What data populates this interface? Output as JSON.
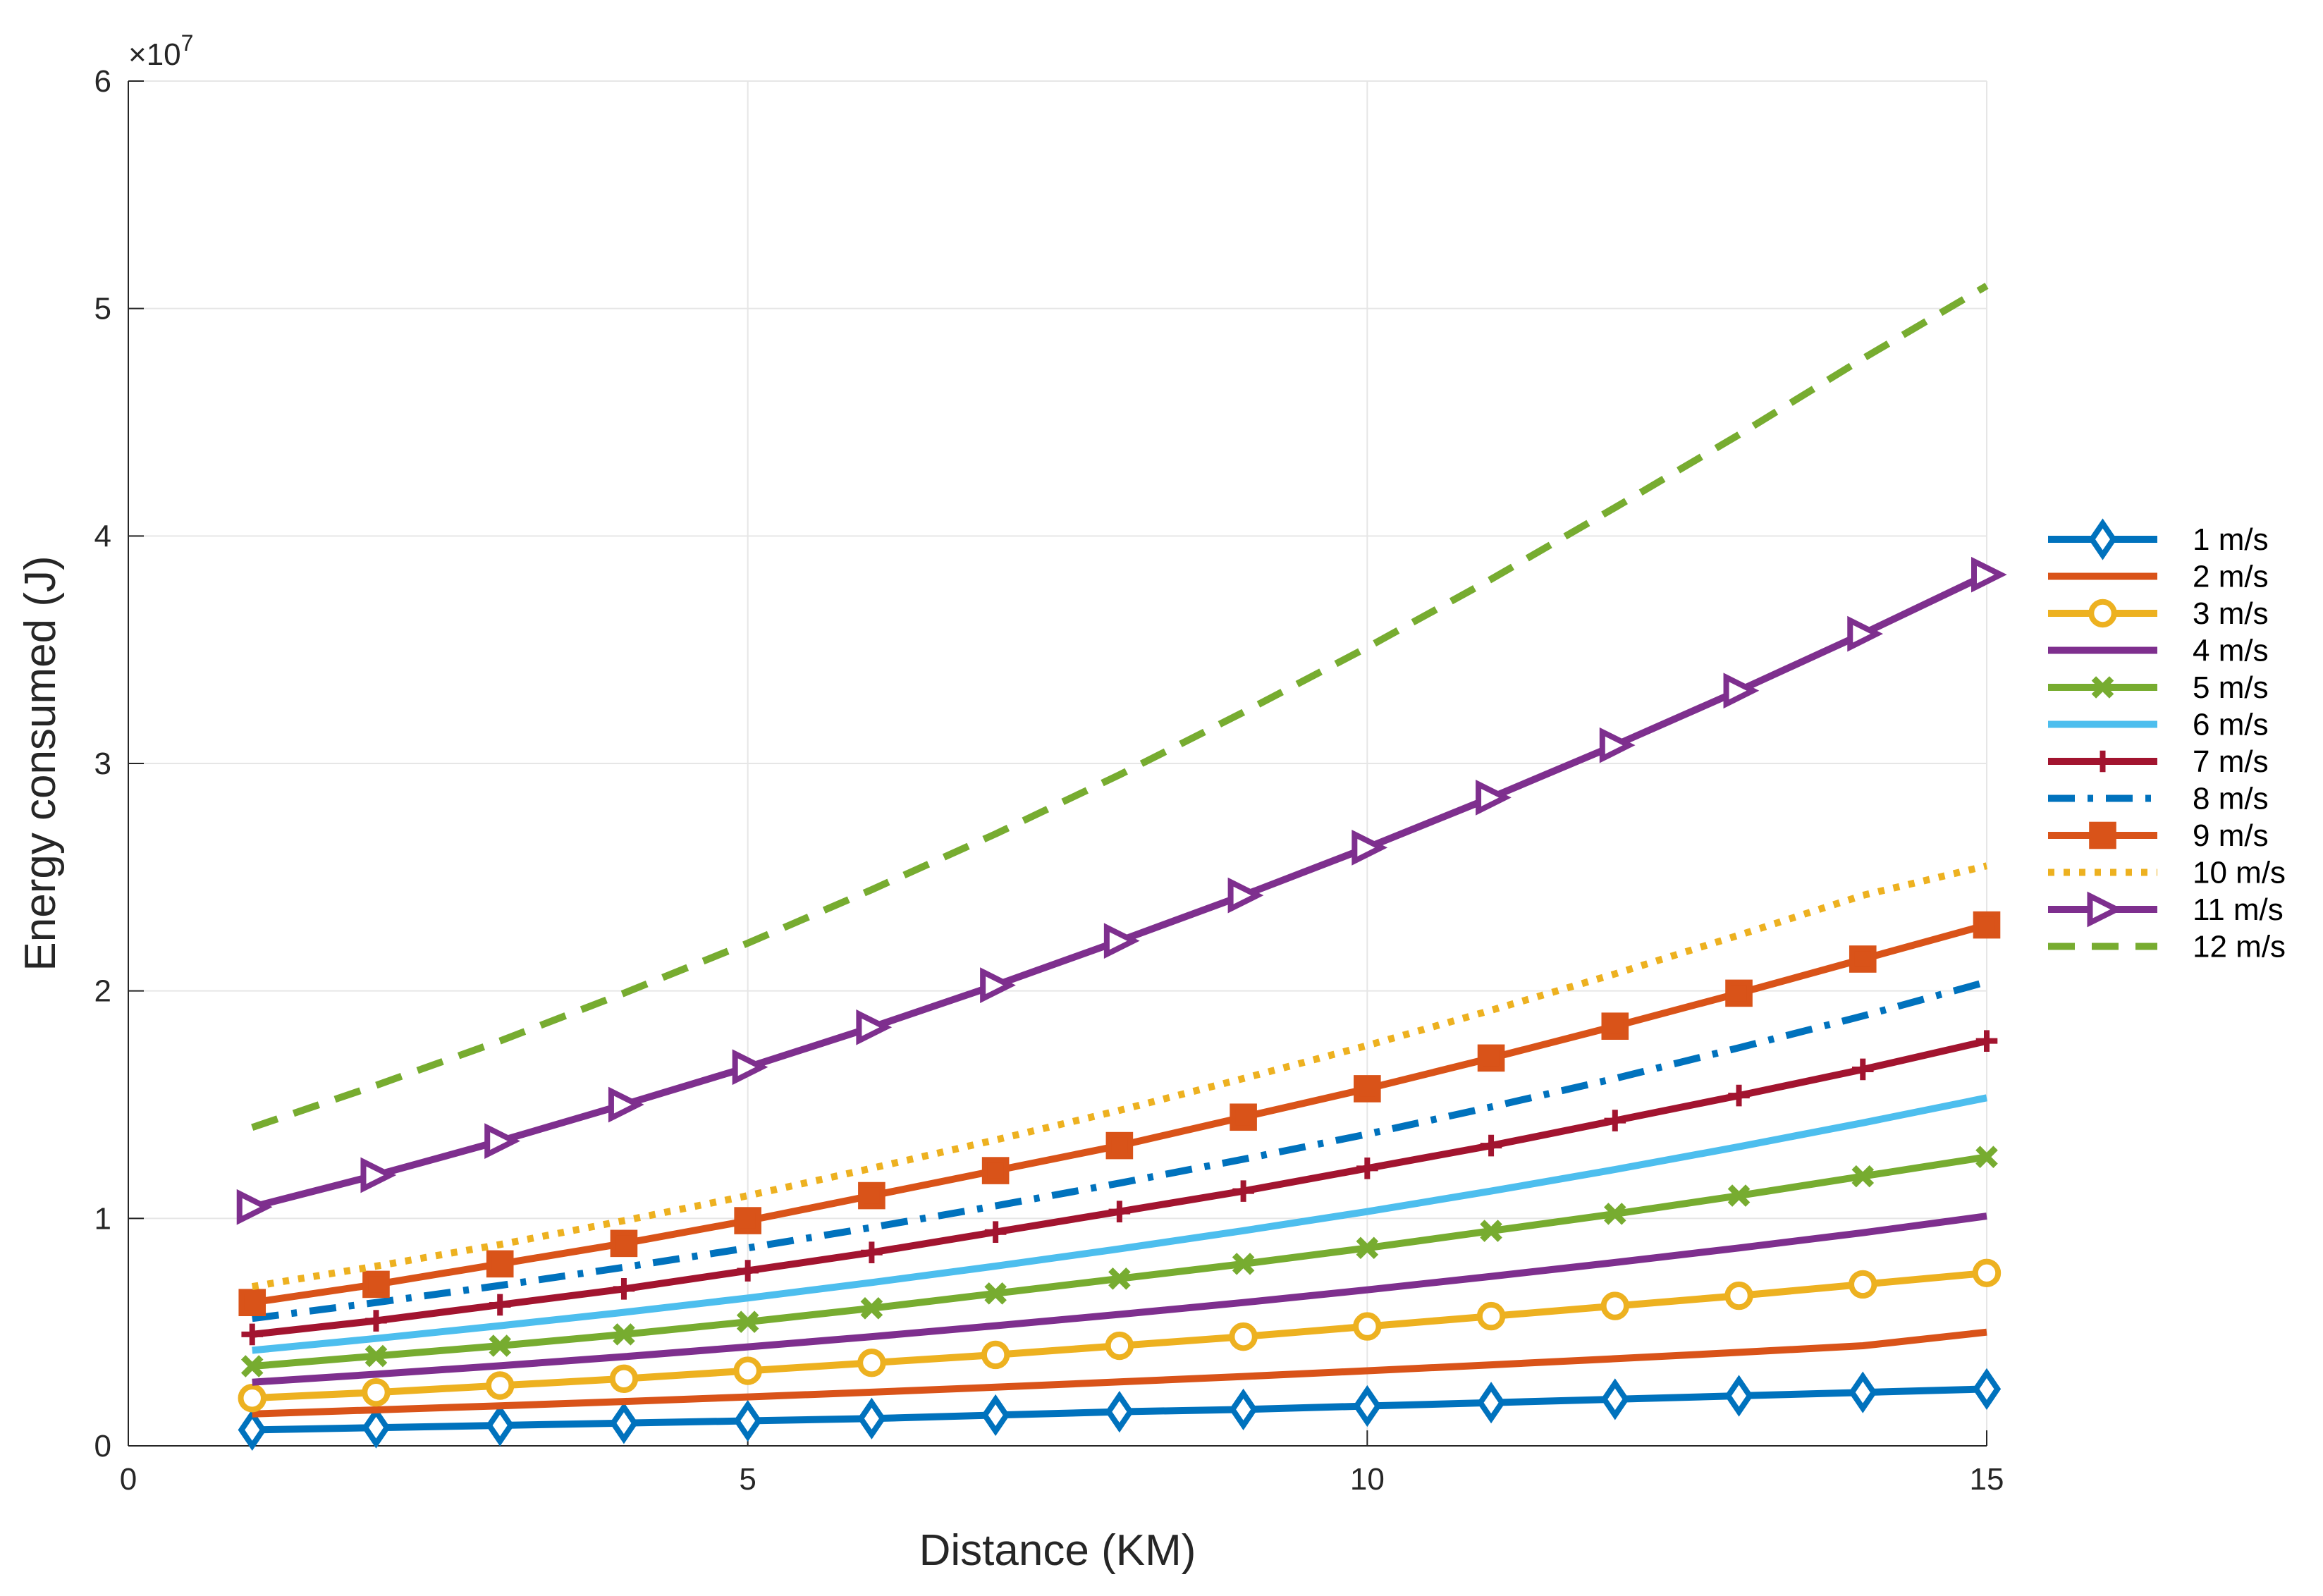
{
  "chart_data": {
    "type": "line",
    "title": "",
    "xlabel": "Distance (KM)",
    "ylabel": "Energy consumed (J)",
    "xlim": [
      0,
      15
    ],
    "ylim": [
      0,
      6
    ],
    "y_multiplier": "×10",
    "y_exponent": "7",
    "grid": true,
    "legend_position": "right",
    "x_ticks": [
      "0",
      "5",
      "10",
      "15"
    ],
    "y_ticks": [
      "0",
      "1",
      "2",
      "3",
      "4",
      "5",
      "6"
    ],
    "x": [
      1,
      2,
      3,
      4,
      5,
      6,
      7,
      8,
      9,
      10,
      11,
      12,
      13,
      14,
      15
    ],
    "series": [
      {
        "name": "1 m/s",
        "color": "#0072BD",
        "marker": "diamond",
        "dash": "solid",
        "values": [
          0.07,
          0.08,
          0.09,
          0.1,
          0.11,
          0.12,
          0.135,
          0.15,
          0.16,
          0.175,
          0.19,
          0.205,
          0.22,
          0.235,
          0.25
        ]
      },
      {
        "name": "2 m/s",
        "color": "#D95319",
        "marker": "none",
        "dash": "solid",
        "values": [
          0.14,
          0.158,
          0.176,
          0.195,
          0.215,
          0.236,
          0.258,
          0.281,
          0.305,
          0.33,
          0.356,
          0.383,
          0.411,
          0.44,
          0.5
        ]
      },
      {
        "name": "3 m/s",
        "color": "#EDB120",
        "marker": "circle",
        "dash": "solid",
        "values": [
          0.21,
          0.235,
          0.265,
          0.295,
          0.33,
          0.365,
          0.4,
          0.44,
          0.48,
          0.525,
          0.57,
          0.615,
          0.66,
          0.71,
          0.76
        ]
      },
      {
        "name": "4 m/s",
        "color": "#7E2F8E",
        "marker": "none",
        "dash": "solid",
        "values": [
          0.28,
          0.315,
          0.352,
          0.392,
          0.435,
          0.48,
          0.528,
          0.578,
          0.63,
          0.686,
          0.745,
          0.806,
          0.87,
          0.937,
          1.01
        ]
      },
      {
        "name": "5 m/s",
        "color": "#77AC30",
        "marker": "x",
        "dash": "solid",
        "values": [
          0.35,
          0.395,
          0.44,
          0.49,
          0.545,
          0.605,
          0.67,
          0.735,
          0.8,
          0.87,
          0.945,
          1.02,
          1.1,
          1.185,
          1.27
        ]
      },
      {
        "name": "6 m/s",
        "color": "#4DBEEE",
        "marker": "none",
        "dash": "solid",
        "values": [
          0.42,
          0.472,
          0.528,
          0.587,
          0.65,
          0.718,
          0.79,
          0.866,
          0.946,
          1.03,
          1.12,
          1.215,
          1.315,
          1.42,
          1.53
        ]
      },
      {
        "name": "7 m/s",
        "color": "#A2142F",
        "marker": "plus",
        "dash": "solid",
        "values": [
          0.49,
          0.55,
          0.62,
          0.69,
          0.77,
          0.85,
          0.94,
          1.03,
          1.12,
          1.22,
          1.32,
          1.43,
          1.54,
          1.655,
          1.78
        ]
      },
      {
        "name": "8 m/s",
        "color": "#0072BD",
        "marker": "none",
        "dash": "dashdot",
        "values": [
          0.56,
          0.63,
          0.705,
          0.785,
          0.87,
          0.96,
          1.055,
          1.155,
          1.26,
          1.37,
          1.49,
          1.615,
          1.75,
          1.89,
          2.04
        ]
      },
      {
        "name": "9 m/s",
        "color": "#D95319",
        "marker": "square",
        "dash": "solid",
        "values": [
          0.63,
          0.71,
          0.8,
          0.89,
          0.99,
          1.1,
          1.21,
          1.32,
          1.445,
          1.57,
          1.705,
          1.845,
          1.99,
          2.14,
          2.29
        ]
      },
      {
        "name": "10 m/s",
        "color": "#EDB120",
        "marker": "none",
        "dash": "dotted",
        "values": [
          0.7,
          0.79,
          0.885,
          0.99,
          1.1,
          1.22,
          1.345,
          1.475,
          1.615,
          1.76,
          1.915,
          2.075,
          2.245,
          2.42,
          2.55
        ]
      },
      {
        "name": "11 m/s",
        "color": "#7E2F8E",
        "marker": "triangle-right",
        "dash": "solid",
        "values": [
          1.05,
          1.19,
          1.34,
          1.5,
          1.665,
          1.84,
          2.025,
          2.22,
          2.42,
          2.63,
          2.85,
          3.08,
          3.32,
          3.57,
          3.83
        ]
      },
      {
        "name": "12 m/s",
        "color": "#77AC30",
        "marker": "none",
        "dash": "dashed",
        "values": [
          1.4,
          1.585,
          1.78,
          1.99,
          2.21,
          2.445,
          2.69,
          2.95,
          3.225,
          3.51,
          3.81,
          4.125,
          4.445,
          4.78,
          5.1
        ]
      }
    ]
  }
}
